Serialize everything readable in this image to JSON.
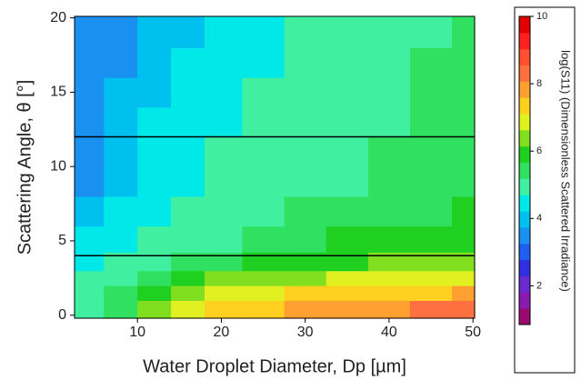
{
  "chart_data": {
    "type": "contour",
    "xlabel": "Water Droplet Diameter, Dp [µm]",
    "ylabel": "Scattering Angle, θ [°]",
    "colorbar_label": "log(S11) (Dimensionless Scattered Irradiance)",
    "xlim": [
      2.5,
      50.2
    ],
    "ylim": [
      -0.2,
      20.1
    ],
    "xticks": [
      10,
      20,
      30,
      40,
      50
    ],
    "yticks": [
      0,
      5,
      10,
      15,
      20
    ],
    "clim": [
      0.85,
      10
    ],
    "cticks": [
      2,
      4,
      6,
      8,
      10
    ],
    "hlines": [
      4,
      12
    ],
    "hline_color": "#000000",
    "colormap": [
      "#9b0a6e",
      "#8a1ab0",
      "#6a2ad0",
      "#3030e0",
      "#2060f0",
      "#1a90f0",
      "#00c0f0",
      "#00e8e8",
      "#40f0a0",
      "#30e060",
      "#20d020",
      "#80e020",
      "#e0f020",
      "#ffd020",
      "#ffa030",
      "#ff7040",
      "#ff5030",
      "#ff2020",
      "#e00000"
    ],
    "x": [
      4,
      8,
      12,
      16,
      20,
      25,
      30,
      35,
      40,
      45,
      50
    ],
    "y": [
      0.5,
      1.5,
      2.5,
      3.5,
      5,
      7,
      9,
      11,
      13,
      15,
      17,
      19
    ],
    "z": [
      [
        5,
        5.5,
        6.5,
        7,
        7.2,
        7.5,
        7.8,
        8,
        8,
        8.2,
        8.5
      ],
      [
        5,
        5.5,
        6,
        6.5,
        7,
        7,
        7.2,
        7.3,
        7.5,
        7.5,
        7.8
      ],
      [
        5,
        5,
        5.5,
        6,
        6.2,
        6.5,
        6.5,
        6.8,
        7,
        7,
        7
      ],
      [
        4.5,
        5,
        5,
        5.5,
        5.5,
        6,
        6,
        6,
        6.5,
        6.5,
        6.5
      ],
      [
        4.5,
        4.5,
        5,
        5,
        5,
        5.5,
        5.5,
        6,
        6,
        6,
        6
      ],
      [
        4,
        4.5,
        4.5,
        5,
        5,
        5,
        5.5,
        5.5,
        5.5,
        5.5,
        6
      ],
      [
        3.5,
        4,
        4.5,
        4.5,
        5,
        5,
        5,
        5,
        5.5,
        5.5,
        5.5
      ],
      [
        3.5,
        4,
        4.5,
        4.5,
        5,
        5,
        5,
        5,
        5.5,
        5.5,
        5.5
      ],
      [
        3.5,
        4,
        4.5,
        4.5,
        4.5,
        5,
        5,
        5,
        5,
        5.5,
        5.5
      ],
      [
        3.5,
        4,
        4,
        4.5,
        4.5,
        5,
        5,
        5,
        5,
        5.5,
        5.5
      ],
      [
        3.5,
        3.5,
        4,
        4.5,
        4.5,
        4.5,
        5,
        5,
        5,
        5.5,
        5.5
      ],
      [
        3.5,
        3.5,
        4,
        4,
        4.5,
        4.5,
        5,
        5,
        5,
        5,
        5.5
      ]
    ]
  }
}
